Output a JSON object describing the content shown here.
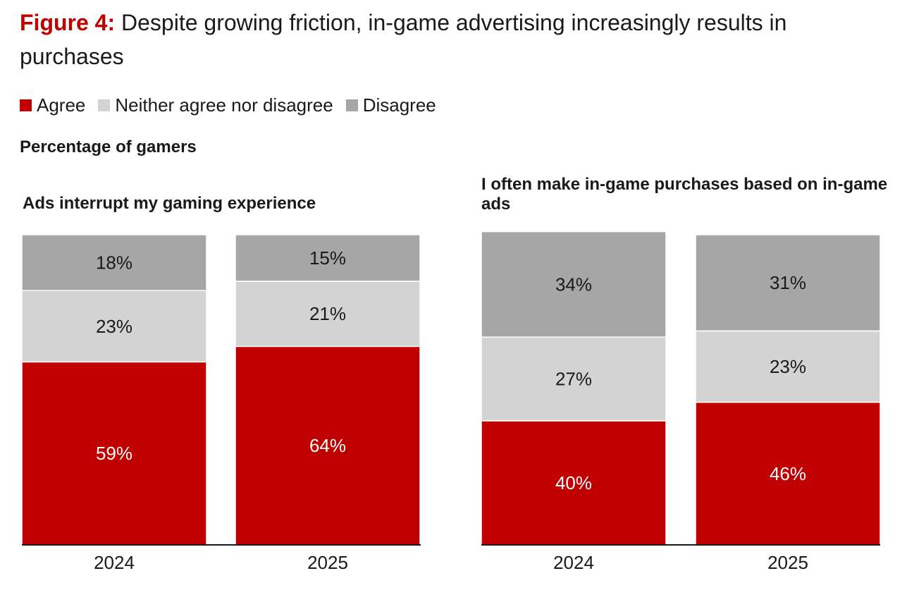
{
  "figure": {
    "prefix": "Figure 4:",
    "title": "Despite growing friction, in-game advertising increasingly results in purchases"
  },
  "legend": {
    "items": [
      {
        "label": "Agree",
        "color": "#c00000"
      },
      {
        "label": "Neither agree nor disagree",
        "color": "#d3d3d3"
      },
      {
        "label": "Disagree",
        "color": "#a6a6a6"
      }
    ]
  },
  "subtitle": "Percentage of gamers",
  "chart_data": [
    {
      "type": "bar",
      "stacked": true,
      "title": "Ads interrupt my gaming experience",
      "categories": [
        "2024",
        "2025"
      ],
      "series": [
        {
          "name": "Agree",
          "values": [
            59,
            64
          ],
          "color": "#c00000"
        },
        {
          "name": "Neither agree nor disagree",
          "values": [
            23,
            21
          ],
          "color": "#d3d3d3"
        },
        {
          "name": "Disagree",
          "values": [
            18,
            15
          ],
          "color": "#a6a6a6"
        }
      ],
      "value_suffix": "%",
      "ylim": [
        0,
        100
      ],
      "grid": false,
      "legend_position": "top-left"
    },
    {
      "type": "bar",
      "stacked": true,
      "title": "I often make in-game purchases based on in-game ads",
      "categories": [
        "2024",
        "2025"
      ],
      "series": [
        {
          "name": "Agree",
          "values": [
            40,
            46
          ],
          "color": "#c00000"
        },
        {
          "name": "Neither agree nor disagree",
          "values": [
            27,
            23
          ],
          "color": "#d3d3d3"
        },
        {
          "name": "Disagree",
          "values": [
            34,
            31
          ],
          "color": "#a6a6a6"
        }
      ],
      "value_suffix": "%",
      "ylim": [
        0,
        100
      ],
      "grid": false,
      "legend_position": "top-left"
    }
  ]
}
